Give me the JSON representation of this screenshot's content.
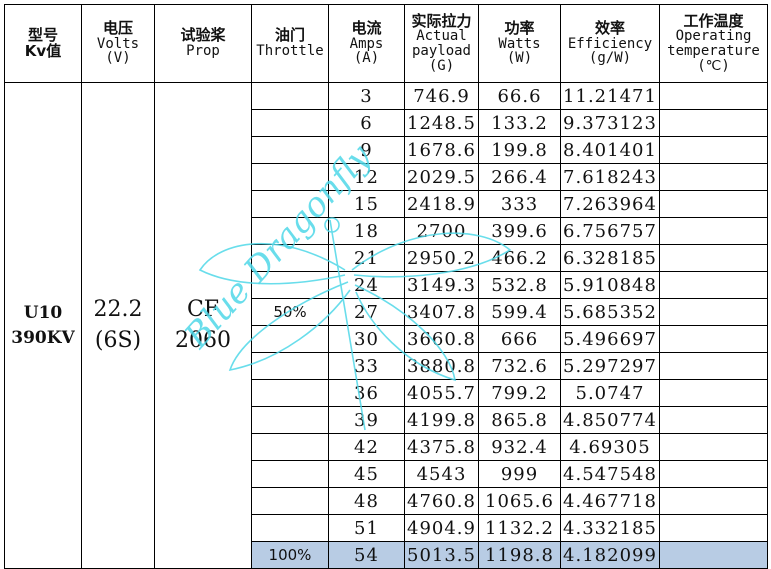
{
  "header": {
    "model": {
      "zh": "型号",
      "en": "Kv值"
    },
    "voltage": {
      "zh": "电压",
      "en": "Volts",
      "unit": "(V)"
    },
    "prop": {
      "zh": "试验桨",
      "en": "Prop"
    },
    "throttle": {
      "zh": "油门",
      "en": "Throttle"
    },
    "current": {
      "zh": "电流",
      "en": "Amps",
      "unit": "(A)"
    },
    "thrust": {
      "zh": "实际拉力",
      "en1": "Actual",
      "en2": "payload",
      "unit": "(G)"
    },
    "power": {
      "zh": "功率",
      "en": "Watts",
      "unit": "(W)"
    },
    "efficiency": {
      "zh": "效率",
      "en": "Efficiency",
      "unit": "(g/W)"
    },
    "temperature": {
      "zh": "工作温度",
      "en1": "Operating",
      "en2": "temperature",
      "unit": "(℃)"
    }
  },
  "merged": {
    "model_line1": "U10",
    "model_line2": "390KV",
    "voltage_line1": "22.2",
    "voltage_line2": "(6S)",
    "prop_line1": "CF",
    "prop_line2": "2060"
  },
  "watermark": {
    "text": "Blue Dragonfly",
    "color": "#4fd8e8"
  },
  "highlight_color": "#b8cce4",
  "rows": [
    {
      "throttle": "",
      "amps": "3",
      "payload": "746.9",
      "watts": "66.6",
      "eff": "11.21471",
      "temp": ""
    },
    {
      "throttle": "",
      "amps": "6",
      "payload": "1248.5",
      "watts": "133.2",
      "eff": "9.373123",
      "temp": ""
    },
    {
      "throttle": "",
      "amps": "9",
      "payload": "1678.6",
      "watts": "199.8",
      "eff": "8.401401",
      "temp": ""
    },
    {
      "throttle": "",
      "amps": "12",
      "payload": "2029.5",
      "watts": "266.4",
      "eff": "7.618243",
      "temp": ""
    },
    {
      "throttle": "",
      "amps": "15",
      "payload": "2418.9",
      "watts": "333",
      "eff": "7.263964",
      "temp": ""
    },
    {
      "throttle": "",
      "amps": "18",
      "payload": "2700",
      "watts": "399.6",
      "eff": "6.756757",
      "temp": ""
    },
    {
      "throttle": "",
      "amps": "21",
      "payload": "2950.2",
      "watts": "466.2",
      "eff": "6.328185",
      "temp": ""
    },
    {
      "throttle": "",
      "amps": "24",
      "payload": "3149.3",
      "watts": "532.8",
      "eff": "5.910848",
      "temp": ""
    },
    {
      "throttle": "50%",
      "amps": "27",
      "payload": "3407.8",
      "watts": "599.4",
      "eff": "5.685352",
      "temp": ""
    },
    {
      "throttle": "",
      "amps": "30",
      "payload": "3660.8",
      "watts": "666",
      "eff": "5.496697",
      "temp": ""
    },
    {
      "throttle": "",
      "amps": "33",
      "payload": "3880.8",
      "watts": "732.6",
      "eff": "5.297297",
      "temp": ""
    },
    {
      "throttle": "",
      "amps": "36",
      "payload": "4055.7",
      "watts": "799.2",
      "eff": "5.0747",
      "temp": ""
    },
    {
      "throttle": "",
      "amps": "39",
      "payload": "4199.8",
      "watts": "865.8",
      "eff": "4.850774",
      "temp": ""
    },
    {
      "throttle": "",
      "amps": "42",
      "payload": "4375.8",
      "watts": "932.4",
      "eff": "4.69305",
      "temp": ""
    },
    {
      "throttle": "",
      "amps": "45",
      "payload": "4543",
      "watts": "999",
      "eff": "4.547548",
      "temp": ""
    },
    {
      "throttle": "",
      "amps": "48",
      "payload": "4760.8",
      "watts": "1065.6",
      "eff": "4.467718",
      "temp": ""
    },
    {
      "throttle": "",
      "amps": "51",
      "payload": "4904.9",
      "watts": "1132.2",
      "eff": "4.332185",
      "temp": ""
    },
    {
      "throttle": "100%",
      "amps": "54",
      "payload": "5013.5",
      "watts": "1198.8",
      "eff": "4.182099",
      "temp": "",
      "highlight": true
    }
  ]
}
